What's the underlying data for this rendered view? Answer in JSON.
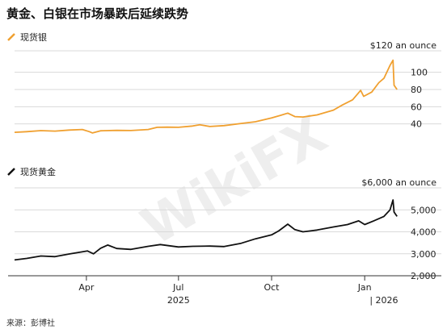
{
  "title": "黄金、白银在市场暴跌后延续跌势",
  "source": "来源：彭博社",
  "watermark": "WikiFX",
  "chart_data": [
    {
      "type": "line",
      "legend": "现货银",
      "color": "#f0a030",
      "unit_label": "$120 an ounce",
      "y_ticks": [
        40,
        60,
        80,
        100
      ],
      "ylim": [
        20,
        125
      ],
      "grid": true,
      "points": [
        [
          "2025-01-20",
          30.2
        ],
        [
          "2025-02-01",
          31.0
        ],
        [
          "2025-02-15",
          32.2
        ],
        [
          "2025-03-01",
          31.6
        ],
        [
          "2025-03-15",
          32.8
        ],
        [
          "2025-03-28",
          33.5
        ],
        [
          "2025-04-04",
          31.0
        ],
        [
          "2025-04-07",
          29.5
        ],
        [
          "2025-04-15",
          32.0
        ],
        [
          "2025-05-01",
          32.5
        ],
        [
          "2025-05-15",
          32.3
        ],
        [
          "2025-06-01",
          33.5
        ],
        [
          "2025-06-10",
          36.0
        ],
        [
          "2025-06-20",
          36.2
        ],
        [
          "2025-07-01",
          36.0
        ],
        [
          "2025-07-15",
          37.5
        ],
        [
          "2025-07-22",
          39.0
        ],
        [
          "2025-08-01",
          37.0
        ],
        [
          "2025-08-15",
          38.0
        ],
        [
          "2025-09-01",
          40.5
        ],
        [
          "2025-09-15",
          42.5
        ],
        [
          "2025-10-01",
          47.0
        ],
        [
          "2025-10-10",
          50.0
        ],
        [
          "2025-10-17",
          52.5
        ],
        [
          "2025-10-24",
          48.5
        ],
        [
          "2025-11-01",
          48.0
        ],
        [
          "2025-11-15",
          50.5
        ],
        [
          "2025-12-01",
          56.0
        ],
        [
          "2025-12-10",
          62.0
        ],
        [
          "2025-12-20",
          68.0
        ],
        [
          "2025-12-28",
          79.0
        ],
        [
          "2025-12-31",
          72.0
        ],
        [
          "2026-01-08",
          77.0
        ],
        [
          "2026-01-15",
          88.0
        ],
        [
          "2026-01-20",
          93.0
        ],
        [
          "2026-01-26",
          108.0
        ],
        [
          "2026-01-29",
          114.0
        ],
        [
          "2026-01-30",
          85.0
        ],
        [
          "2026-02-02",
          80.0
        ]
      ]
    },
    {
      "type": "line",
      "legend": "现货黄金",
      "color": "#111111",
      "unit_label": "$6,000 an ounce",
      "y_ticks": [
        2000,
        3000,
        4000,
        5000
      ],
      "ylim": [
        2000,
        6000
      ],
      "grid": true,
      "points": [
        [
          "2025-01-20",
          2720
        ],
        [
          "2025-02-01",
          2790
        ],
        [
          "2025-02-15",
          2900
        ],
        [
          "2025-03-01",
          2870
        ],
        [
          "2025-03-15",
          2990
        ],
        [
          "2025-04-02",
          3130
        ],
        [
          "2025-04-08",
          3000
        ],
        [
          "2025-04-15",
          3250
        ],
        [
          "2025-04-22",
          3400
        ],
        [
          "2025-05-01",
          3240
        ],
        [
          "2025-05-15",
          3200
        ],
        [
          "2025-06-01",
          3340
        ],
        [
          "2025-06-13",
          3420
        ],
        [
          "2025-07-01",
          3310
        ],
        [
          "2025-07-15",
          3340
        ],
        [
          "2025-08-01",
          3350
        ],
        [
          "2025-08-15",
          3330
        ],
        [
          "2025-09-01",
          3480
        ],
        [
          "2025-09-15",
          3680
        ],
        [
          "2025-10-01",
          3860
        ],
        [
          "2025-10-08",
          4040
        ],
        [
          "2025-10-17",
          4350
        ],
        [
          "2025-10-24",
          4100
        ],
        [
          "2025-11-01",
          4000
        ],
        [
          "2025-11-15",
          4080
        ],
        [
          "2025-12-01",
          4220
        ],
        [
          "2025-12-15",
          4330
        ],
        [
          "2025-12-26",
          4500
        ],
        [
          "2026-01-01",
          4330
        ],
        [
          "2026-01-10",
          4500
        ],
        [
          "2026-01-20",
          4700
        ],
        [
          "2026-01-26",
          5000
        ],
        [
          "2026-01-29",
          5450
        ],
        [
          "2026-01-30",
          4900
        ],
        [
          "2026-02-02",
          4700
        ]
      ]
    }
  ],
  "x_axis": {
    "start": "2025-01-20",
    "end": "2026-02-09",
    "ticks": [
      {
        "date": "2025-04-01",
        "label": "Apr"
      },
      {
        "date": "2025-07-01",
        "label": "Jul"
      },
      {
        "date": "2025-10-01",
        "label": "Oct"
      },
      {
        "date": "2026-01-01",
        "label": "Jan"
      }
    ],
    "years": [
      {
        "date": "2025-07-01",
        "label": "2025"
      },
      {
        "date": "2026-01-20",
        "label": "| 2026"
      }
    ]
  }
}
